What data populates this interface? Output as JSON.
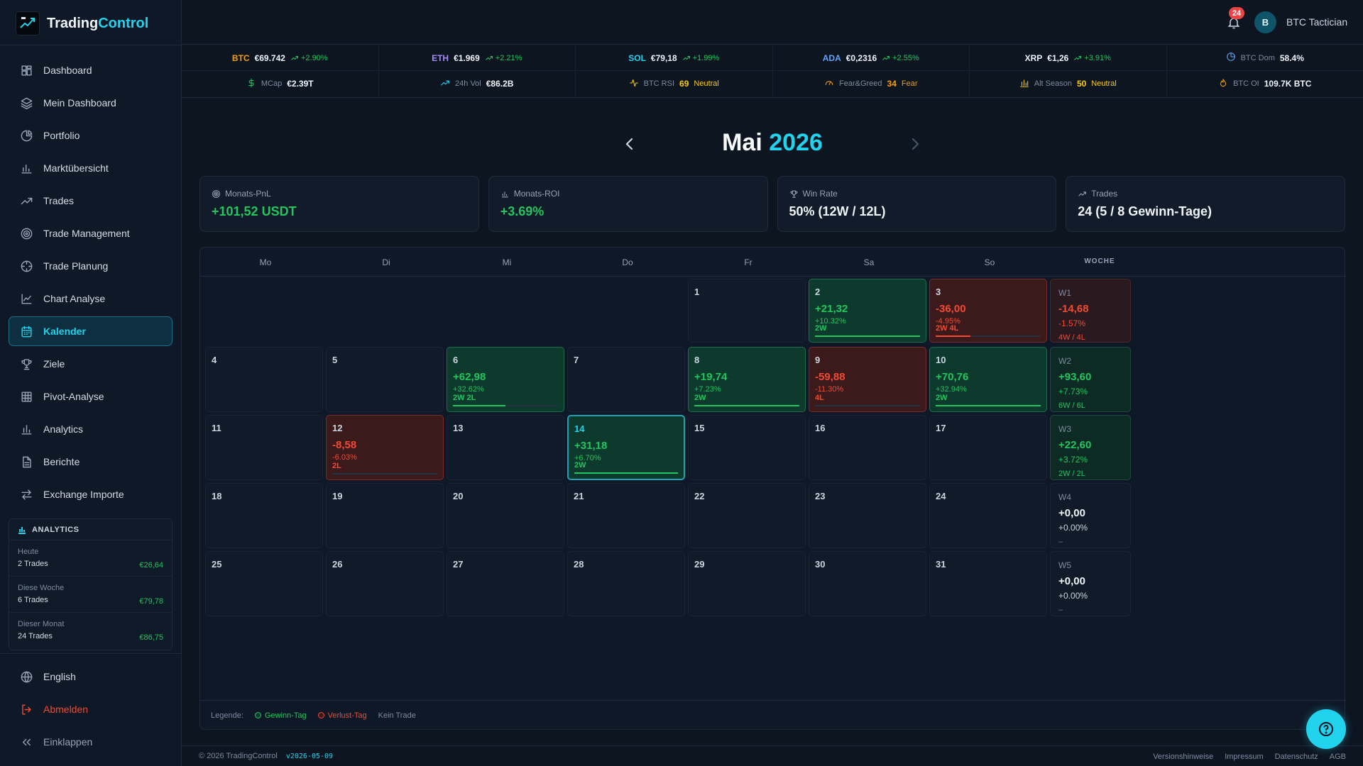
{
  "app": {
    "name_a": "Trading",
    "name_b": "Control"
  },
  "nav": [
    {
      "label": "Dashboard",
      "icon": "dashboard-icon"
    },
    {
      "label": "Mein Dashboard",
      "icon": "layers-icon"
    },
    {
      "label": "Portfolio",
      "icon": "pie-chart-icon"
    },
    {
      "label": "Marktübersicht",
      "icon": "bar-chart-icon"
    },
    {
      "label": "Trades",
      "icon": "trending-up-icon"
    },
    {
      "label": "Trade Management",
      "icon": "target-icon"
    },
    {
      "label": "Trade Planung",
      "icon": "crosshair-icon"
    },
    {
      "label": "Chart Analyse",
      "icon": "line-chart-icon"
    },
    {
      "label": "Kalender",
      "icon": "calendar-icon",
      "active": true
    },
    {
      "label": "Ziele",
      "icon": "trophy-icon"
    },
    {
      "label": "Pivot-Analyse",
      "icon": "grid-icon"
    },
    {
      "label": "Analytics",
      "icon": "analytics-icon"
    },
    {
      "label": "Berichte",
      "icon": "report-icon"
    },
    {
      "label": "Exchange Importe",
      "icon": "exchange-icon"
    }
  ],
  "analytics": {
    "title": "ANALYTICS",
    "rows": [
      {
        "label": "Heute",
        "sub": "2 Trades",
        "value": "€26,64"
      },
      {
        "label": "Diese Woche",
        "sub": "6 Trades",
        "value": "€79,78"
      },
      {
        "label": "Dieser Monat",
        "sub": "24 Trades",
        "value": "€86,75"
      }
    ]
  },
  "bottom_nav": {
    "language": "English",
    "logout": "Abmelden",
    "collapse": "Einklappen"
  },
  "topbar": {
    "notifications": "24",
    "avatar": "B",
    "username": "BTC Tactician"
  },
  "ticker": {
    "coins": [
      {
        "sym": "BTC",
        "price": "€69.742",
        "change": "+2.90%",
        "color": "#f59e0b"
      },
      {
        "sym": "ETH",
        "price": "€1.969",
        "change": "+2.21%",
        "color": "#a78bfa"
      },
      {
        "sym": "SOL",
        "price": "€79,18",
        "change": "+1.99%",
        "color": "#22d3ee"
      },
      {
        "sym": "ADA",
        "price": "€0,2316",
        "change": "+2.55%",
        "color": "#60a5fa"
      },
      {
        "sym": "XRP",
        "price": "€1,26",
        "change": "+3.91%",
        "color": "#f1f5f9"
      }
    ],
    "btc_dom": {
      "label": "BTC Dom",
      "value": "58.4%"
    },
    "row2": {
      "mcap": {
        "label": "MCap",
        "value": "€2.39T"
      },
      "vol": {
        "label": "24h Vol",
        "value": "€86.2B"
      },
      "rsi": {
        "label": "BTC RSI",
        "value": "69",
        "status": "Neutral"
      },
      "fear": {
        "label": "Fear&Greed",
        "value": "34",
        "status": "Fear"
      },
      "alt": {
        "label": "Alt Season",
        "value": "50",
        "status": "Neutral"
      },
      "oi": {
        "label": "BTC OI",
        "value": "109.7K BTC"
      }
    }
  },
  "calendar": {
    "month": "Mai",
    "year": "2026",
    "stats": [
      {
        "label": "Monats-PnL",
        "value": "+101,52 USDT",
        "icon": "target-icon",
        "tone": "g"
      },
      {
        "label": "Monats-ROI",
        "value": "+3.69%",
        "icon": "bar-chart-icon",
        "tone": "g"
      },
      {
        "label": "Win Rate",
        "value": "50% (12W / 12L)",
        "icon": "trophy-icon",
        "tone": "w"
      },
      {
        "label": "Trades",
        "value": "24 (5 / 8 Gewinn-Tage)",
        "icon": "trending-up-icon",
        "tone": "w"
      }
    ],
    "weekdays": [
      "Mo",
      "Di",
      "Mi",
      "Do",
      "Fr",
      "Sa",
      "So"
    ],
    "week_label": "WOCHE",
    "weeks": [
      {
        "days": [
          null,
          null,
          null,
          null,
          {
            "n": "1"
          },
          {
            "n": "2",
            "pnl": "+21,32",
            "pct": "+10.32%",
            "wl": "2W",
            "state": "gain",
            "win_ratio": 1.0
          },
          {
            "n": "3",
            "pnl": "-36,00",
            "pct": "-4.95%",
            "wl": "2W 4L",
            "state": "loss",
            "win_ratio": 0.33
          }
        ],
        "summary": {
          "label": "W1",
          "pnl": "-14,68",
          "pct": "-1.57%",
          "wl": "4W / 4L",
          "state": "loss"
        }
      },
      {
        "days": [
          {
            "n": "4"
          },
          {
            "n": "5"
          },
          {
            "n": "6",
            "pnl": "+62,98",
            "pct": "+32.62%",
            "wl": "2W 2L",
            "state": "gain",
            "win_ratio": 0.5
          },
          {
            "n": "7"
          },
          {
            "n": "8",
            "pnl": "+19,74",
            "pct": "+7.23%",
            "wl": "2W",
            "state": "gain",
            "win_ratio": 1.0
          },
          {
            "n": "9",
            "pnl": "-59,88",
            "pct": "-11.30%",
            "wl": "4L",
            "state": "loss",
            "win_ratio": 0
          },
          {
            "n": "10",
            "pnl": "+70,76",
            "pct": "+32.94%",
            "wl": "2W",
            "state": "gain",
            "win_ratio": 1.0
          }
        ],
        "summary": {
          "label": "W2",
          "pnl": "+93,60",
          "pct": "+7.73%",
          "wl": "6W / 6L",
          "state": "gain"
        }
      },
      {
        "days": [
          {
            "n": "11"
          },
          {
            "n": "12",
            "pnl": "-8,58",
            "pct": "-6.03%",
            "wl": "2L",
            "state": "loss",
            "win_ratio": 0
          },
          {
            "n": "13"
          },
          {
            "n": "14",
            "pnl": "+31,18",
            "pct": "+6.70%",
            "wl": "2W",
            "state": "gain",
            "win_ratio": 1.0,
            "today": true
          },
          {
            "n": "15"
          },
          {
            "n": "16"
          },
          {
            "n": "17"
          }
        ],
        "summary": {
          "label": "W3",
          "pnl": "+22,60",
          "pct": "+3.72%",
          "wl": "2W / 2L",
          "state": "gain"
        }
      },
      {
        "days": [
          {
            "n": "18"
          },
          {
            "n": "19"
          },
          {
            "n": "20"
          },
          {
            "n": "21"
          },
          {
            "n": "22"
          },
          {
            "n": "23"
          },
          {
            "n": "24"
          }
        ],
        "summary": {
          "label": "W4",
          "pnl": "+0,00",
          "pct": "+0.00%",
          "wl": "–",
          "state": "none"
        }
      },
      {
        "days": [
          {
            "n": "25"
          },
          {
            "n": "26"
          },
          {
            "n": "27"
          },
          {
            "n": "28"
          },
          {
            "n": "29"
          },
          {
            "n": "30"
          },
          {
            "n": "31"
          }
        ],
        "summary": {
          "label": "W5",
          "pnl": "+0,00",
          "pct": "+0.00%",
          "wl": "–",
          "state": "none"
        }
      }
    ],
    "legend": {
      "label": "Legende:",
      "gain": "Gewinn-Tag",
      "loss": "Verlust-Tag",
      "none": "Kein Trade"
    }
  },
  "footer": {
    "copyright": "© 2026 TradingControl",
    "version": "v2026-05-09",
    "links": [
      "Versionshinweise",
      "Impressum",
      "Datenschutz",
      "AGB"
    ]
  },
  "colors": {
    "accent": "#22d3ee",
    "gain": "#22c55e",
    "loss": "#f04a32",
    "warn": "#facc15"
  }
}
